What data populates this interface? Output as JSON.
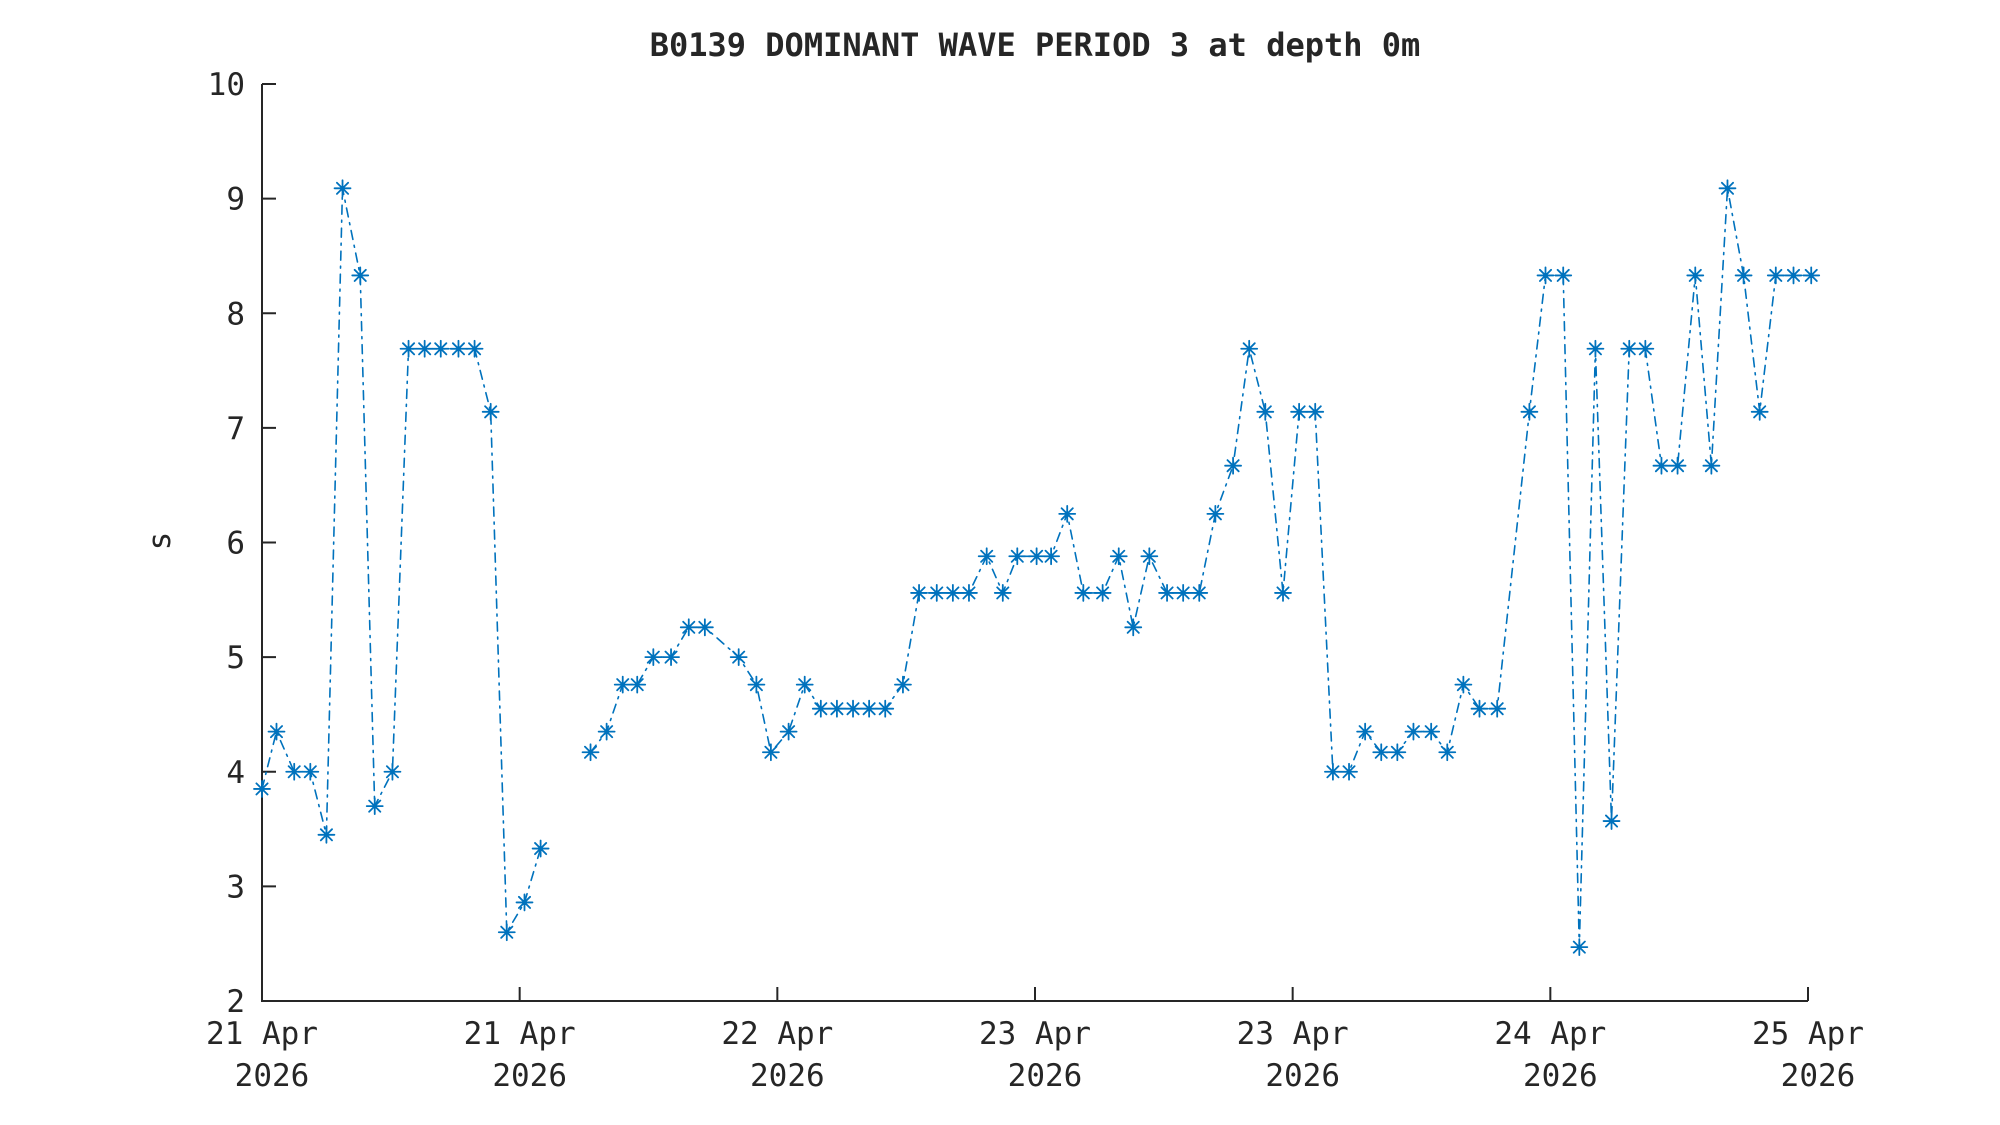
{
  "window": {
    "background": "#ffffff"
  },
  "chart_data": {
    "type": "line",
    "title": "B0139 DOMINANT WAVE PERIOD 3 at depth 0m",
    "xlabel": "",
    "ylabel": "s",
    "ylim": [
      2,
      10
    ],
    "yticks": [
      "2",
      "3",
      "4",
      "5",
      "6",
      "7",
      "8",
      "9",
      "10"
    ],
    "ytick_values": [
      2,
      3,
      4,
      5,
      6,
      7,
      8,
      9,
      10
    ],
    "x_unit": "hours since 21 Apr 2026 00:00",
    "xlim": [
      0,
      96
    ],
    "xticks": [
      {
        "hour": 0,
        "label": "21 Apr",
        "sublabel": "2026"
      },
      {
        "hour": 16,
        "label": "21 Apr",
        "sublabel": "2026"
      },
      {
        "hour": 32,
        "label": "22 Apr",
        "sublabel": "2026"
      },
      {
        "hour": 48,
        "label": "23 Apr",
        "sublabel": "2026"
      },
      {
        "hour": 64,
        "label": "23 Apr",
        "sublabel": "2026"
      },
      {
        "hour": 80,
        "label": "24 Apr",
        "sublabel": "2026"
      },
      {
        "hour": 96,
        "label": "25 Apr",
        "sublabel": "2026"
      }
    ],
    "grid": false,
    "legend": null,
    "box": false,
    "line_color": "#0072BD",
    "axis_color": "#262626",
    "line_style": "dash-dot",
    "marker": "asterisk",
    "series": [
      {
        "name": "dominant wave period",
        "segments": [
          [
            [
              0,
              3.85
            ],
            [
              0.9,
              4.35
            ],
            [
              2,
              4.0
            ],
            [
              3,
              4.0
            ],
            [
              4,
              3.45
            ],
            [
              5,
              9.09
            ],
            [
              6.1,
              8.33
            ],
            [
              7,
              3.7
            ],
            [
              8.1,
              4.0
            ],
            [
              9.1,
              7.69
            ],
            [
              10.1,
              7.69
            ],
            [
              11.1,
              7.69
            ],
            [
              12.2,
              7.69
            ],
            [
              13.2,
              7.69
            ],
            [
              14.2,
              7.14
            ],
            [
              15.2,
              2.6
            ],
            [
              16.3,
              2.86
            ],
            [
              17.3,
              3.33
            ]
          ],
          [
            [
              20.4,
              4.17
            ],
            [
              21.4,
              4.35
            ],
            [
              22.4,
              4.76
            ],
            [
              23.3,
              4.76
            ],
            [
              24.3,
              5.0
            ],
            [
              25.4,
              5.0
            ],
            [
              26.5,
              5.26
            ],
            [
              27.5,
              5.26
            ],
            [
              29.6,
              5.0
            ],
            [
              30.7,
              4.76
            ],
            [
              31.6,
              4.17
            ],
            [
              32.7,
              4.35
            ],
            [
              33.7,
              4.76
            ],
            [
              34.7,
              4.55
            ],
            [
              35.7,
              4.55
            ],
            [
              36.7,
              4.55
            ],
            [
              37.7,
              4.55
            ],
            [
              38.7,
              4.55
            ],
            [
              39.8,
              4.76
            ],
            [
              40.8,
              5.56
            ],
            [
              41.9,
              5.56
            ],
            [
              42.9,
              5.56
            ],
            [
              43.9,
              5.56
            ],
            [
              45,
              5.88
            ],
            [
              46,
              5.56
            ],
            [
              46.9,
              5.88
            ],
            [
              48.1,
              5.88
            ],
            [
              49,
              5.88
            ],
            [
              50,
              6.25
            ],
            [
              51,
              5.56
            ],
            [
              52.2,
              5.56
            ],
            [
              53.2,
              5.88
            ],
            [
              54.1,
              5.26
            ],
            [
              55.1,
              5.88
            ],
            [
              56.2,
              5.56
            ],
            [
              57.2,
              5.56
            ],
            [
              58.2,
              5.56
            ],
            [
              59.2,
              6.25
            ],
            [
              60.3,
              6.67
            ],
            [
              61.3,
              7.69
            ],
            [
              62.3,
              7.14
            ],
            [
              63.4,
              5.56
            ],
            [
              64.4,
              7.14
            ],
            [
              65.4,
              7.14
            ],
            [
              66.5,
              4.0
            ],
            [
              67.5,
              4.0
            ],
            [
              68.5,
              4.35
            ],
            [
              69.5,
              4.17
            ],
            [
              70.5,
              4.17
            ],
            [
              71.5,
              4.35
            ],
            [
              72.6,
              4.35
            ],
            [
              73.6,
              4.17
            ],
            [
              74.6,
              4.76
            ],
            [
              75.6,
              4.55
            ],
            [
              76.7,
              4.55
            ],
            [
              78.7,
              7.14
            ],
            [
              79.7,
              8.33
            ],
            [
              80.8,
              8.33
            ],
            [
              81.8,
              2.47
            ],
            [
              82.8,
              7.69
            ],
            [
              83.8,
              3.57
            ],
            [
              84.9,
              7.69
            ],
            [
              85.9,
              7.69
            ],
            [
              86.9,
              6.67
            ],
            [
              87.9,
              6.67
            ],
            [
              89,
              8.33
            ],
            [
              90,
              6.67
            ],
            [
              91,
              9.09
            ],
            [
              92,
              8.33
            ],
            [
              93,
              7.14
            ],
            [
              94,
              8.33
            ],
            [
              95.1,
              8.33
            ],
            [
              96.2,
              8.33
            ]
          ]
        ]
      }
    ]
  }
}
